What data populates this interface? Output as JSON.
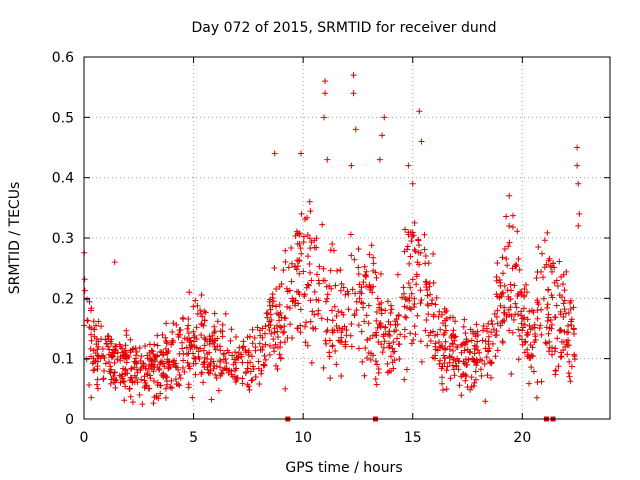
{
  "chart_data": {
    "type": "scatter",
    "title": "Day 072 of 2015, SRMTID for receiver dund",
    "xlabel": "GPS time / hours",
    "ylabel": "SRMTID / TECUs",
    "xlim": [
      0,
      24
    ],
    "ylim": [
      0,
      0.6
    ],
    "xticks": [
      0,
      5,
      10,
      15,
      20
    ],
    "xtick_labels": [
      "0",
      "5",
      "10",
      "15",
      "20"
    ],
    "yticks": [
      0,
      0.1,
      0.2,
      0.3,
      0.4,
      0.5,
      0.6
    ],
    "ytick_labels": [
      "0",
      "0.1",
      "0.2",
      "0.3",
      "0.4",
      "0.5",
      "0.6"
    ],
    "grid": true,
    "marker": "plus",
    "color": "#e00000",
    "baseline_envelope": {
      "description": "approximate typical SRMTID level versus GPS time (hours)",
      "x": [
        0,
        0.3,
        1,
        2,
        3,
        4,
        5,
        6,
        7,
        8,
        8.5,
        9,
        9.5,
        10,
        10.5,
        11,
        11.5,
        12,
        12.5,
        13,
        13.5,
        14,
        14.5,
        15,
        15.5,
        16,
        16.5,
        17,
        17.5,
        18,
        18.5,
        19,
        19.5,
        20,
        20.5,
        21,
        21.5,
        22,
        22.4
      ],
      "y": [
        0.16,
        0.12,
        0.1,
        0.09,
        0.08,
        0.1,
        0.12,
        0.11,
        0.09,
        0.1,
        0.15,
        0.17,
        0.2,
        0.25,
        0.24,
        0.2,
        0.17,
        0.16,
        0.2,
        0.18,
        0.15,
        0.13,
        0.18,
        0.22,
        0.2,
        0.15,
        0.12,
        0.1,
        0.1,
        0.11,
        0.12,
        0.18,
        0.22,
        0.17,
        0.13,
        0.2,
        0.18,
        0.17,
        0.15
      ]
    },
    "spikes": [
      {
        "x": 1.4,
        "y": 0.26
      },
      {
        "x": 4.8,
        "y": 0.21
      },
      {
        "x": 8.7,
        "y": 0.44
      },
      {
        "x": 9.9,
        "y": 0.44
      },
      {
        "x": 10.3,
        "y": 0.36
      },
      {
        "x": 11.0,
        "y": 0.56
      },
      {
        "x": 11.0,
        "y": 0.54
      },
      {
        "x": 10.95,
        "y": 0.5
      },
      {
        "x": 11.1,
        "y": 0.43
      },
      {
        "x": 12.3,
        "y": 0.57
      },
      {
        "x": 12.3,
        "y": 0.54
      },
      {
        "x": 12.4,
        "y": 0.48
      },
      {
        "x": 12.2,
        "y": 0.42
      },
      {
        "x": 13.7,
        "y": 0.5
      },
      {
        "x": 13.6,
        "y": 0.47
      },
      {
        "x": 13.5,
        "y": 0.43
      },
      {
        "x": 14.8,
        "y": 0.42
      },
      {
        "x": 15.0,
        "y": 0.39
      },
      {
        "x": 15.3,
        "y": 0.51
      },
      {
        "x": 15.4,
        "y": 0.46
      },
      {
        "x": 19.4,
        "y": 0.37
      },
      {
        "x": 22.5,
        "y": 0.45
      },
      {
        "x": 22.5,
        "y": 0.42
      },
      {
        "x": 22.55,
        "y": 0.39
      },
      {
        "x": 22.6,
        "y": 0.34
      },
      {
        "x": 22.55,
        "y": 0.32
      }
    ],
    "zero_points": [
      {
        "x": 9.3,
        "y": 0
      },
      {
        "x": 13.3,
        "y": 0
      },
      {
        "x": 21.1,
        "y": 0
      },
      {
        "x": 21.4,
        "y": 0
      }
    ]
  }
}
